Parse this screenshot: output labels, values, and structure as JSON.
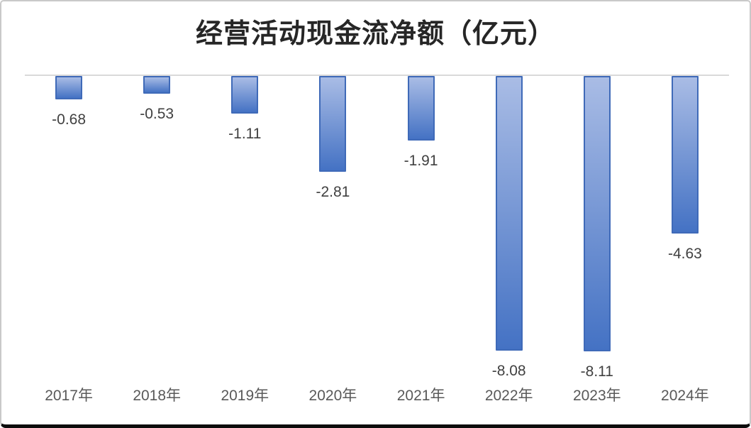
{
  "chart_data": {
    "type": "bar",
    "title": "经营活动现金流净额（亿元）",
    "categories": [
      "2017年",
      "2018年",
      "2019年",
      "2020年",
      "2021年",
      "2022年",
      "2023年",
      "2024年"
    ],
    "values": [
      -0.68,
      -0.53,
      -1.11,
      -2.81,
      -1.91,
      -8.08,
      -8.11,
      -4.63
    ],
    "labels": [
      "-0.68",
      "-0.53",
      "-1.11",
      "-2.81",
      "-1.91",
      "-8.08",
      "-8.11",
      "-4.63"
    ],
    "xlabel": "",
    "ylabel": "",
    "ylim": [
      -8.5,
      0
    ],
    "grid": false,
    "legend": "none",
    "label_position": "outside-end-below",
    "colors": {
      "bar_gradient_top": "#a9bce5",
      "bar_gradient_bottom": "#4472c4",
      "bar_border": "#3f6ab8",
      "zero_axis_line": "#d9d9d9",
      "title_text": "#262626",
      "data_label_text": "#404040",
      "tick_label_text": "#595959",
      "background": "#ffffff"
    }
  }
}
